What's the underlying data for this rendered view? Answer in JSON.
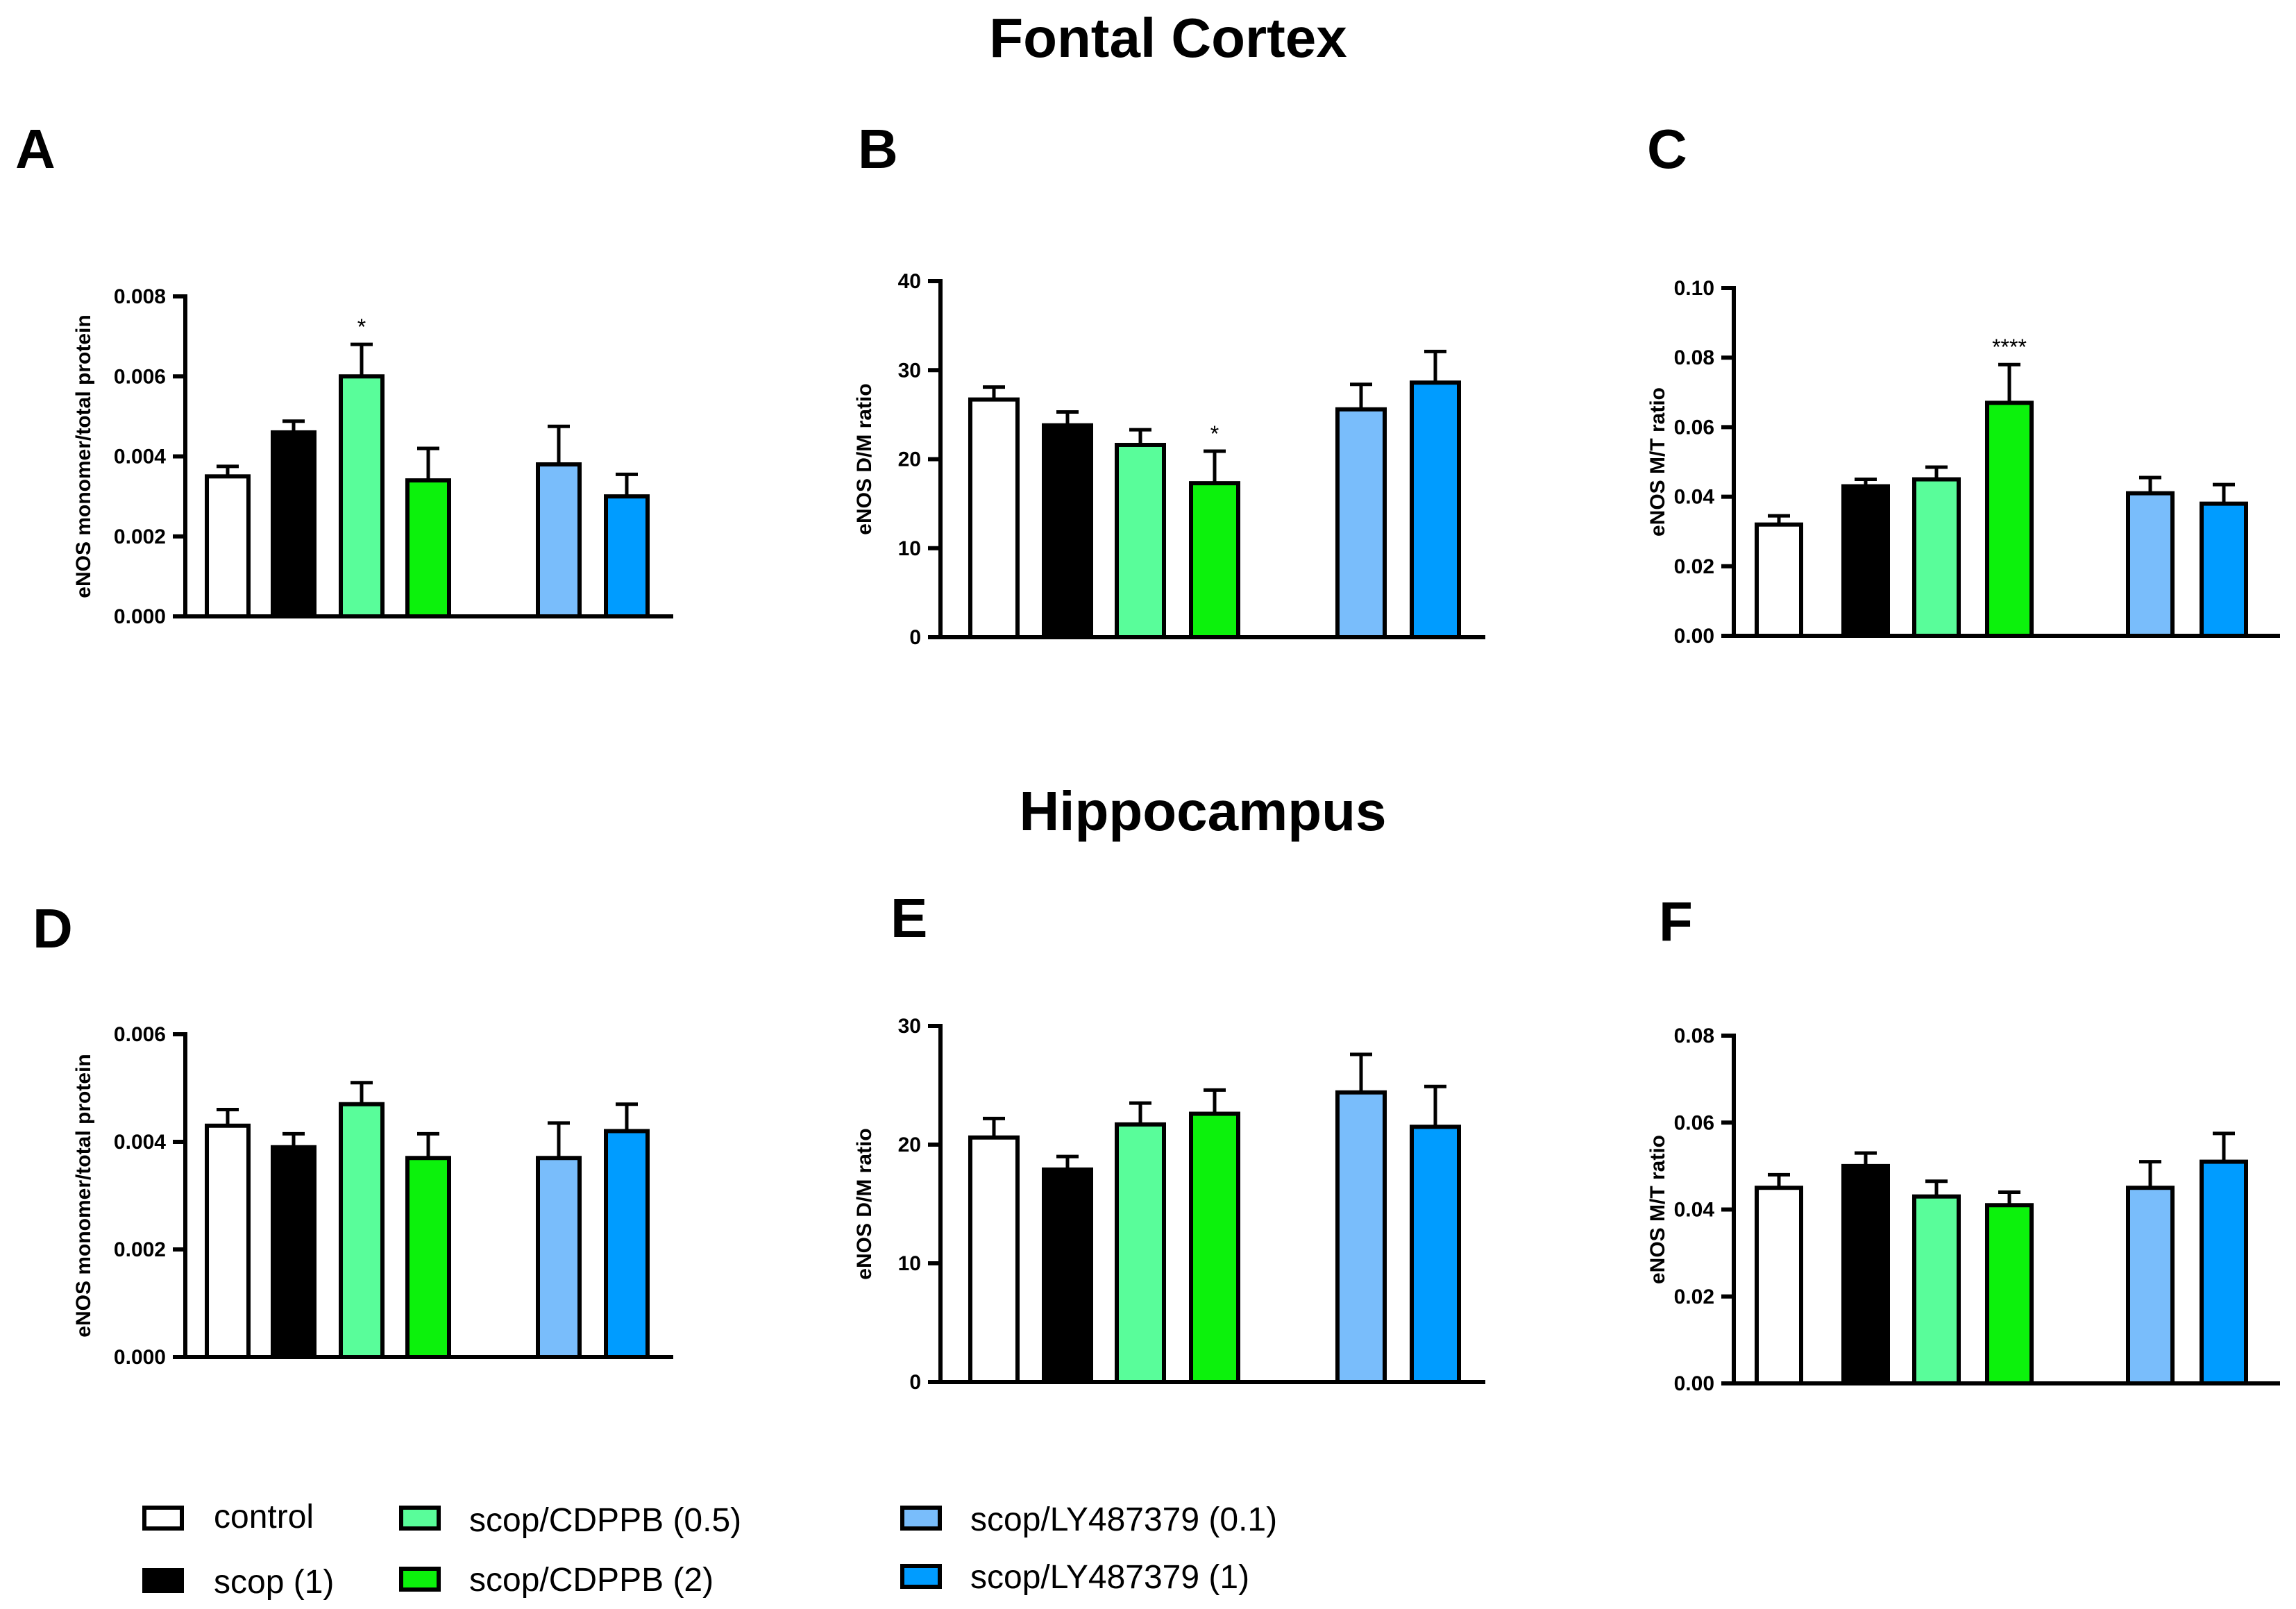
{
  "headings": {
    "top": "Fontal Cortex",
    "bottom": "Hippocampus"
  },
  "colors": {
    "control": "#ffffff",
    "scop1": "#000000",
    "cdppb05": "#59fd9a",
    "cdppb2": "#0cf20c",
    "ly01": "#79bdfb",
    "ly1": "#009cff",
    "stroke": "#000000"
  },
  "legend": [
    {
      "label": "control",
      "color": "#ffffff"
    },
    {
      "label": "scop (1)",
      "color": "#000000"
    },
    {
      "label": "scop/CDPPB (0.5)",
      "color": "#59fd9a"
    },
    {
      "label": "scop/CDPPB (2)",
      "color": "#0cf20c"
    },
    {
      "label": "scop/LY487379 (0.1)",
      "color": "#79bdfb"
    },
    {
      "label": "scop/LY487379 (1)",
      "color": "#009cff"
    }
  ],
  "chart_data": [
    {
      "panel": "A",
      "region": "Fontal Cortex",
      "type": "bar",
      "ylabel": "eNOS monomer/total protein",
      "ylim": [
        0,
        0.008
      ],
      "ticks": [
        "0.000",
        "0.002",
        "0.004",
        "0.006",
        "0.008"
      ],
      "categories": [
        "control",
        "scop (1)",
        "scop/CDPPB (0.5)",
        "scop/CDPPB (2)",
        "scop/LY487379 (0.1)",
        "scop/LY487379 (1)"
      ],
      "values": [
        0.0035,
        0.0046,
        0.006,
        0.0034,
        0.0038,
        0.003
      ],
      "errors": [
        0.00025,
        0.00028,
        0.0008,
        0.0008,
        0.00095,
        0.00055
      ],
      "annotations": [
        "",
        "",
        "*",
        "",
        "",
        ""
      ]
    },
    {
      "panel": "B",
      "region": "Fontal Cortex",
      "type": "bar",
      "ylabel": "eNOS D/M ratio",
      "ylim": [
        0,
        40
      ],
      "ticks": [
        "0",
        "10",
        "20",
        "30",
        "40"
      ],
      "categories": [
        "control",
        "scop (1)",
        "scop/CDPPB (0.5)",
        "scop/CDPPB (2)",
        "scop/LY487379 (0.1)",
        "scop/LY487379 (1)"
      ],
      "values": [
        26.7,
        23.8,
        21.6,
        17.3,
        25.6,
        28.6
      ],
      "errors": [
        1.4,
        1.5,
        1.7,
        3.6,
        2.8,
        3.5
      ],
      "annotations": [
        "",
        "",
        "",
        "*",
        "",
        ""
      ]
    },
    {
      "panel": "C",
      "region": "Fontal Cortex",
      "type": "bar",
      "ylabel": "eNOS M/T ratio",
      "ylim": [
        0,
        0.1
      ],
      "ticks": [
        "0.00",
        "0.02",
        "0.04",
        "0.06",
        "0.08",
        "0.10"
      ],
      "categories": [
        "control",
        "scop (1)",
        "scop/CDPPB (0.5)",
        "scop/CDPPB (2)",
        "scop/LY487379 (0.1)",
        "scop/LY487379 (1)"
      ],
      "values": [
        0.032,
        0.043,
        0.045,
        0.067,
        0.041,
        0.038
      ],
      "errors": [
        0.0025,
        0.002,
        0.0035,
        0.011,
        0.0045,
        0.0055
      ],
      "annotations": [
        "",
        "",
        "",
        "****",
        "",
        ""
      ]
    },
    {
      "panel": "D",
      "region": "Hippocampus",
      "type": "bar",
      "ylabel": "eNOS monomer/total protein",
      "ylim": [
        0,
        0.006
      ],
      "ticks": [
        "0.000",
        "0.002",
        "0.004",
        "0.006"
      ],
      "categories": [
        "control",
        "scop (1)",
        "scop/CDPPB (0.5)",
        "scop/CDPPB (2)",
        "scop/LY487379 (0.1)",
        "scop/LY487379 (1)"
      ],
      "values": [
        0.0043,
        0.0039,
        0.0047,
        0.0037,
        0.0037,
        0.0042
      ],
      "errors": [
        0.0003,
        0.00025,
        0.0004,
        0.00045,
        0.00065,
        0.0005
      ],
      "annotations": [
        "",
        "",
        "",
        "",
        "",
        ""
      ]
    },
    {
      "panel": "E",
      "region": "Hippocampus",
      "type": "bar",
      "ylabel": "eNOS D/M ratio",
      "ylim": [
        0,
        30
      ],
      "ticks": [
        "0",
        "10",
        "20",
        "30"
      ],
      "categories": [
        "control",
        "scop (1)",
        "scop/CDPPB (0.5)",
        "scop/CDPPB (2)",
        "scop/LY487379 (0.1)",
        "scop/LY487379 (1)"
      ],
      "values": [
        20.6,
        17.9,
        21.7,
        22.6,
        24.4,
        21.5
      ],
      "errors": [
        1.6,
        1.1,
        1.8,
        2.0,
        3.2,
        3.4
      ],
      "annotations": [
        "",
        "",
        "",
        "",
        "",
        ""
      ]
    },
    {
      "panel": "F",
      "region": "Hippocampus",
      "type": "bar",
      "ylabel": "eNOS M/T ratio",
      "ylim": [
        0,
        0.08
      ],
      "ticks": [
        "0.00",
        "0.02",
        "0.04",
        "0.06",
        "0.08"
      ],
      "categories": [
        "control",
        "scop (1)",
        "scop/CDPPB (0.5)",
        "scop/CDPPB (2)",
        "scop/LY487379 (0.1)",
        "scop/LY487379 (1)"
      ],
      "values": [
        0.045,
        0.05,
        0.043,
        0.041,
        0.045,
        0.051
      ],
      "errors": [
        0.003,
        0.003,
        0.0035,
        0.003,
        0.006,
        0.0065
      ],
      "annotations": [
        "",
        "",
        "",
        "",
        "",
        ""
      ]
    }
  ]
}
